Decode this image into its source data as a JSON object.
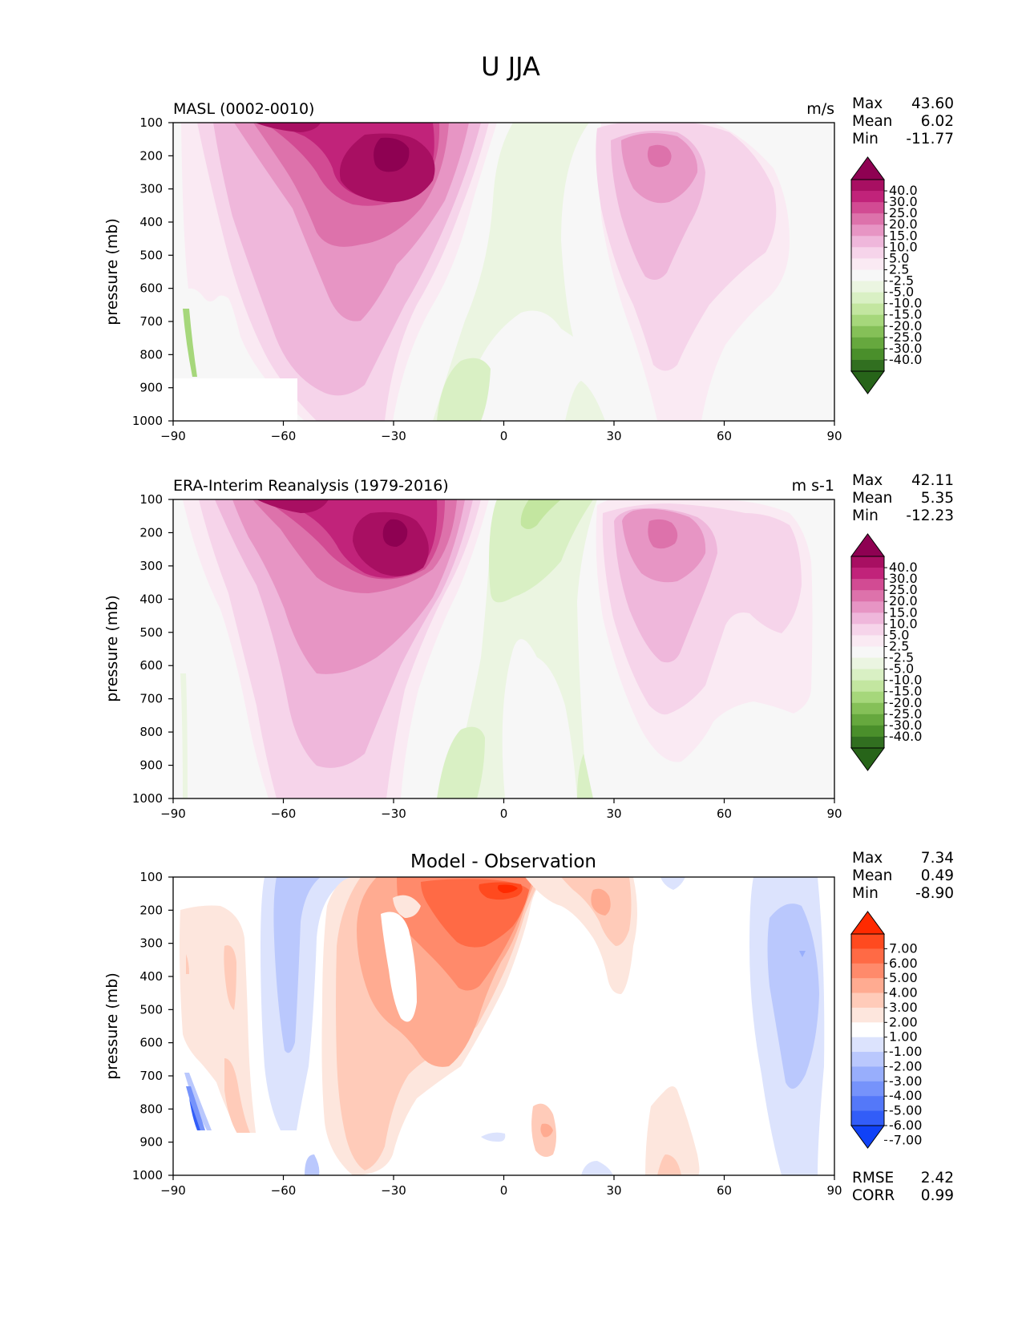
{
  "figure": {
    "title": "U JJA"
  },
  "chart_data": [
    {
      "type": "heatmap",
      "subtype": "filled-contour",
      "left_title": "MASL (0002-0010)",
      "center_title": "",
      "units": "m/s",
      "ylabel": "pressure (mb)",
      "x_ticks": [
        "−90",
        "−60",
        "−30",
        "0",
        "30",
        "60",
        "90"
      ],
      "y_ticks": [
        "100",
        "200",
        "300",
        "400",
        "500",
        "600",
        "700",
        "800",
        "900",
        "1000"
      ],
      "xlim": [
        -90,
        90
      ],
      "ylim": [
        1000,
        100
      ],
      "stats": [
        {
          "label": "Max",
          "value": "43.60"
        },
        {
          "label": "Mean",
          "value": "6.02"
        },
        {
          "label": "Min",
          "value": "-11.77"
        }
      ],
      "colorbar": {
        "labels": [
          "40.0",
          "30.0",
          "25.0",
          "20.0",
          "15.0",
          "10.0",
          "5.0",
          "2.5",
          "-2.5",
          "-5.0",
          "-10.0",
          "-15.0",
          "-20.0",
          "-25.0",
          "-30.0",
          "-40.0"
        ],
        "colors": [
          "#8e0152",
          "#a80f62",
          "#c1237a",
          "#d24b93",
          "#dd72ab",
          "#e795c4",
          "#efb7db",
          "#f6d4ea",
          "#faeaf3",
          "#f7f7f7",
          "#ebf5e1",
          "#d9f0c4",
          "#c3e6a0",
          "#a6d77b",
          "#85c058",
          "#66a83e",
          "#4a8f2b",
          "#316f20",
          "#276419"
        ]
      },
      "stats_bottom": []
    },
    {
      "type": "heatmap",
      "subtype": "filled-contour",
      "left_title": "ERA-Interim Reanalysis (1979-2016)",
      "center_title": "",
      "units": "m s-1",
      "ylabel": "pressure (mb)",
      "x_ticks": [
        "−90",
        "−60",
        "−30",
        "0",
        "30",
        "60",
        "90"
      ],
      "y_ticks": [
        "100",
        "200",
        "300",
        "400",
        "500",
        "600",
        "700",
        "800",
        "900",
        "1000"
      ],
      "xlim": [
        -90,
        90
      ],
      "ylim": [
        1000,
        100
      ],
      "stats": [
        {
          "label": "Max",
          "value": "42.11"
        },
        {
          "label": "Mean",
          "value": "5.35"
        },
        {
          "label": "Min",
          "value": "-12.23"
        }
      ],
      "colorbar": {
        "labels": [
          "40.0",
          "30.0",
          "25.0",
          "20.0",
          "15.0",
          "10.0",
          "5.0",
          "2.5",
          "-2.5",
          "-5.0",
          "-10.0",
          "-15.0",
          "-20.0",
          "-25.0",
          "-30.0",
          "-40.0"
        ],
        "colors": [
          "#8e0152",
          "#a80f62",
          "#c1237a",
          "#d24b93",
          "#dd72ab",
          "#e795c4",
          "#efb7db",
          "#f6d4ea",
          "#faeaf3",
          "#f7f7f7",
          "#ebf5e1",
          "#d9f0c4",
          "#c3e6a0",
          "#a6d77b",
          "#85c058",
          "#66a83e",
          "#4a8f2b",
          "#316f20",
          "#276419"
        ]
      },
      "stats_bottom": []
    },
    {
      "type": "heatmap",
      "subtype": "filled-contour",
      "left_title": "",
      "center_title": "Model - Observation",
      "units": "",
      "ylabel": "pressure (mb)",
      "x_ticks": [
        "−90",
        "−60",
        "−30",
        "0",
        "30",
        "60",
        "90"
      ],
      "y_ticks": [
        "100",
        "200",
        "300",
        "400",
        "500",
        "600",
        "700",
        "800",
        "900",
        "1000"
      ],
      "xlim": [
        -90,
        90
      ],
      "ylim": [
        1000,
        100
      ],
      "stats": [
        {
          "label": "Max",
          "value": "7.34"
        },
        {
          "label": "Mean",
          "value": "0.49"
        },
        {
          "label": "Min",
          "value": "-8.90"
        }
      ],
      "colorbar": {
        "labels": [
          "7.00",
          "6.00",
          "5.00",
          "4.00",
          "3.00",
          "2.00",
          "1.00",
          "-1.00",
          "-2.00",
          "-3.00",
          "-4.00",
          "-5.00",
          "-6.00",
          "-7.00"
        ],
        "colors": [
          "#ff2a00",
          "#ff4a1f",
          "#ff6a45",
          "#ff8a6b",
          "#ffab91",
          "#ffcbb9",
          "#fde6dd",
          "#ffffff",
          "#dce3fd",
          "#bac8fd",
          "#98aefc",
          "#7693fb",
          "#5478f9",
          "#325df8",
          "#1042f7"
        ]
      },
      "stats_bottom": [
        {
          "label": "RMSE",
          "value": "2.42"
        },
        {
          "label": "CORR",
          "value": "0.99"
        }
      ]
    }
  ]
}
